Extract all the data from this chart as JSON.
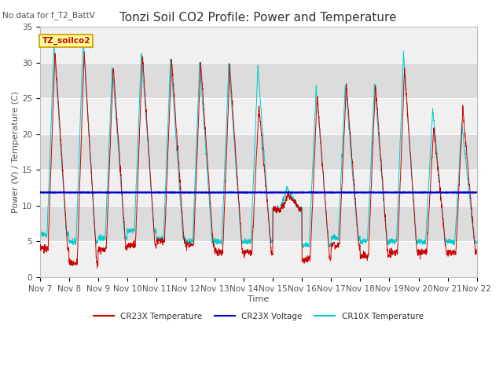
{
  "title": "Tonzi Soil CO2 Profile: Power and Temperature",
  "subtitle": "No data for f_T2_BattV",
  "xlabel": "Time",
  "ylabel": "Power (V) / Temperature (C)",
  "ylim": [
    0,
    35
  ],
  "yticks": [
    0,
    5,
    10,
    15,
    20,
    25,
    30,
    35
  ],
  "xtick_labels": [
    "Nov 7",
    "Nov 8",
    "Nov 9",
    "Nov 10",
    "Nov 11",
    "Nov 12",
    "Nov 13",
    "Nov 14",
    "Nov 15",
    "Nov 16",
    "Nov 17",
    "Nov 18",
    "Nov 19",
    "Nov 20",
    "Nov 21",
    "Nov 22"
  ],
  "cr23x_temp_color": "#cc0000",
  "cr23x_volt_color": "#0000cc",
  "cr10x_temp_color": "#00cccc",
  "background_color": "#ffffff",
  "plot_bg_light": "#f0f0f0",
  "plot_bg_dark": "#dcdcdc",
  "grid_color": "#ffffff",
  "legend_box_color": "#ffff99",
  "legend_box_border": "#cc9900",
  "cr23x_voltage_level": 11.85,
  "title_fontsize": 11,
  "axis_fontsize": 8,
  "tick_fontsize": 7.5,
  "n_days": 15,
  "points_per_day": 144,
  "cr23x_day_peaks": [
    31.5,
    31.5,
    29.5,
    31.0,
    30.5,
    30.0,
    29.5,
    24.0,
    11.5,
    25.5,
    27.0,
    27.0,
    29.0,
    21.0,
    23.5
  ],
  "cr23x_day_mins": [
    4.0,
    2.0,
    4.0,
    4.5,
    5.0,
    4.5,
    3.5,
    3.5,
    9.5,
    2.5,
    4.5,
    3.0,
    3.5,
    3.5,
    3.5
  ],
  "cr10x_day_peaks": [
    32.5,
    33.5,
    29.5,
    31.5,
    30.5,
    30.0,
    29.5,
    29.5,
    12.5,
    26.5,
    27.0,
    27.0,
    31.5,
    23.5,
    21.5
  ],
  "cr10x_day_mins": [
    6.0,
    5.0,
    5.5,
    6.5,
    5.5,
    5.0,
    5.0,
    5.0,
    9.5,
    4.5,
    5.5,
    5.0,
    5.0,
    5.0,
    5.0
  ]
}
